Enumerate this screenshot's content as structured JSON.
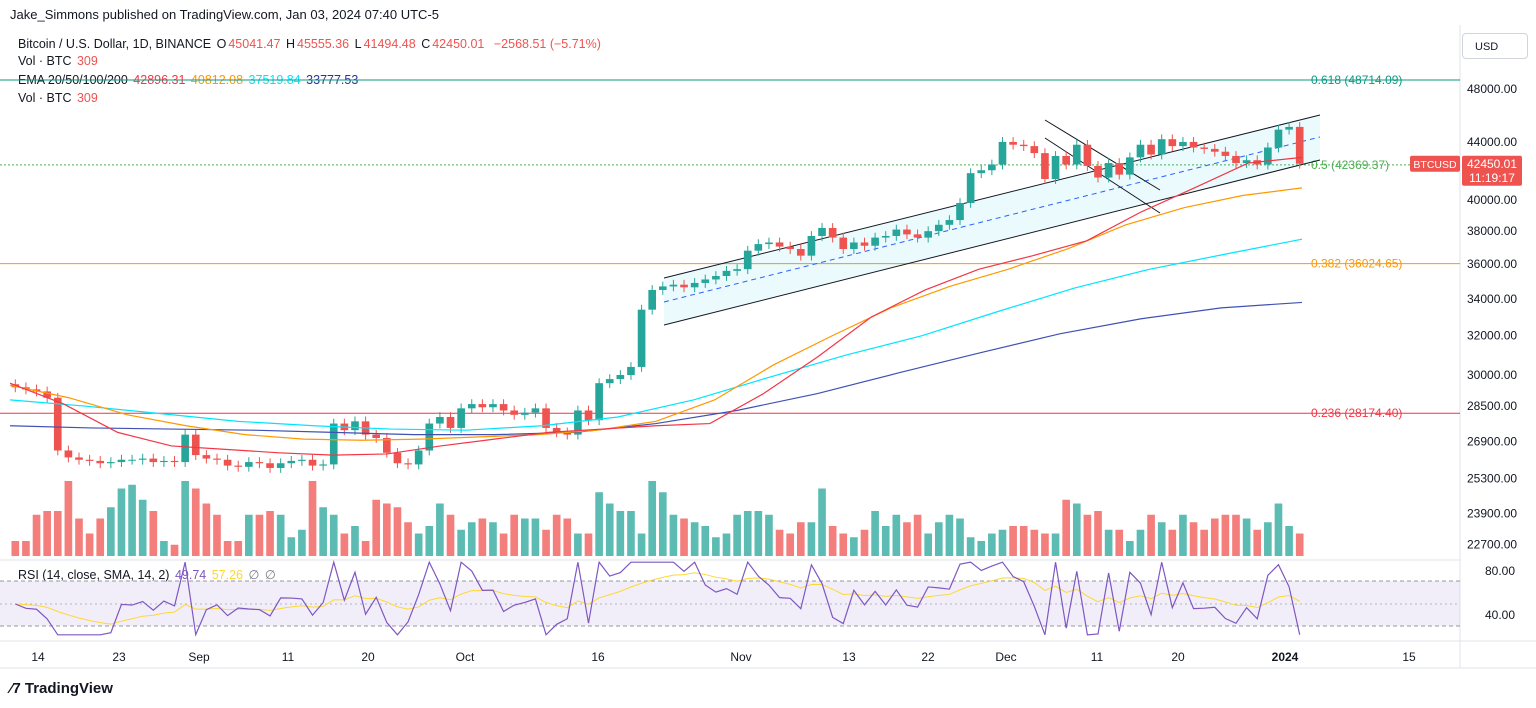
{
  "header": "Jake_Simmons published on TradingView.com, Jan 03, 2024 07:40 UTC-5",
  "legend": {
    "pair": "Bitcoin / U.S. Dollar, 1D, BINANCE",
    "o_label": "O",
    "o": "45041.47",
    "h_label": "H",
    "h": "45555.36",
    "l_label": "L",
    "l": "41494.48",
    "c_label": "C",
    "c": "42450.01",
    "chg": "−2568.51 (−5.71%)",
    "vol1_label": "Vol · BTC",
    "vol1": "309",
    "ema_label": "EMA 20/50/100/200",
    "ema20": "42896.31",
    "ema50": "40812.08",
    "ema100": "37519.84",
    "ema200": "33777.53",
    "vol2_label": "Vol · BTC",
    "vol2": "309",
    "rsi_label": "RSI (14, close, SMA, 14, 2)",
    "rsi": "49.74",
    "rsi_sma": "57.26"
  },
  "currency_button": "USD",
  "price_badge": {
    "symbol": "BTCUSD",
    "price": "42450.01",
    "countdown": "11:19:17"
  },
  "colors": {
    "up": "#26a69a",
    "down": "#ef5350",
    "ema20": "#f23645",
    "ema50": "#ff9800",
    "ema100": "#00e5ff",
    "ema200": "#3f51b5",
    "rsi": "#7e57c2",
    "rsi_sma": "#fdd835",
    "fib0618": "#089981",
    "fib05": "#4caf50",
    "fib0382": "#ff9800",
    "fib0236": "#f23645"
  },
  "footer": "TradingView",
  "chart_data": {
    "type": "candlestick",
    "title": "Bitcoin / U.S. Dollar, 1D, BINANCE",
    "y_axis_ticks": [
      48000,
      44000,
      40000,
      38000,
      36000,
      34000,
      32000,
      30000,
      28500,
      26900,
      25300,
      23900,
      22700
    ],
    "x_axis_ticks": [
      "14",
      "23",
      "Sep",
      "11",
      "20",
      "Oct",
      "16",
      "Nov",
      "13",
      "22",
      "Dec",
      "11",
      "20",
      "2024",
      "15"
    ],
    "fib_levels": [
      {
        "label": "0.618 (48714.09)",
        "value": 48714.09
      },
      {
        "label": "0.5 (42369.37)",
        "value": 42369.37
      },
      {
        "label": "0.382 (36024.65)",
        "value": 36024.65
      },
      {
        "label": "0.236 (28174.40)",
        "value": 28174.4
      }
    ],
    "close_path": [
      29400,
      29300,
      29200,
      28900,
      26500,
      26200,
      26100,
      26050,
      25950,
      26000,
      26100,
      26100,
      26150,
      26000,
      26050,
      26000,
      27200,
      26300,
      26150,
      26100,
      25850,
      25800,
      26000,
      25950,
      25750,
      25950,
      26050,
      26100,
      25850,
      25900,
      27700,
      27400,
      27800,
      27200,
      27050,
      26400,
      25950,
      25900,
      26500,
      27700,
      28000,
      27500,
      28400,
      28600,
      28450,
      28600,
      28300,
      28100,
      28200,
      28400,
      27500,
      27300,
      27200,
      28300,
      27850,
      29600,
      29800,
      30000,
      30400,
      33400,
      34500,
      34700,
      34800,
      34650,
      34900,
      35100,
      35300,
      35600,
      35700,
      36800,
      37200,
      37300,
      37050,
      36900,
      36500,
      37700,
      38200,
      37600,
      36900,
      37300,
      37100,
      37600,
      37700,
      38100,
      37800,
      37600,
      38000,
      38400,
      38700,
      39800,
      41800,
      42000,
      42400,
      44000,
      43800,
      43700,
      43200,
      41400,
      43000,
      42400,
      43800,
      42300,
      41500,
      42500,
      41700,
      42900,
      43800,
      43100,
      44200,
      43700,
      44000,
      43600,
      43500,
      43300,
      43000,
      42500,
      42700,
      42400,
      43600,
      44900,
      45100,
      42450
    ],
    "volume_relative": [
      0.2,
      0.2,
      0.55,
      0.6,
      0.6,
      1.0,
      0.5,
      0.3,
      0.5,
      0.65,
      0.9,
      0.95,
      0.75,
      0.6,
      0.2,
      0.15,
      1.0,
      0.9,
      0.7,
      0.55,
      0.2,
      0.2,
      0.55,
      0.55,
      0.6,
      0.55,
      0.25,
      0.35,
      1.0,
      0.65,
      0.55,
      0.3,
      0.4,
      0.2,
      0.75,
      0.7,
      0.65,
      0.45,
      0.3,
      0.4,
      0.7,
      0.55,
      0.35,
      0.45,
      0.5,
      0.45,
      0.3,
      0.55,
      0.5,
      0.5,
      0.35,
      0.55,
      0.5,
      0.3,
      0.3,
      0.85,
      0.7,
      0.6,
      0.6,
      0.3,
      1.0,
      0.85,
      0.55,
      0.5,
      0.45,
      0.4,
      0.25,
      0.3,
      0.55,
      0.6,
      0.6,
      0.55,
      0.35,
      0.3,
      0.45,
      0.45,
      0.9,
      0.4,
      0.3,
      0.25,
      0.35,
      0.6,
      0.4,
      0.55,
      0.45,
      0.55,
      0.3,
      0.45,
      0.55,
      0.5,
      0.25,
      0.2,
      0.3,
      0.35,
      0.4,
      0.4,
      0.35,
      0.3,
      0.3,
      0.75,
      0.7,
      0.55,
      0.6,
      0.35,
      0.35,
      0.2,
      0.35,
      0.55,
      0.45,
      0.35,
      0.55,
      0.45,
      0.35,
      0.5,
      0.55,
      0.55,
      0.5,
      0.35,
      0.45,
      0.7,
      0.4,
      0.3
    ],
    "ema20_path": [
      29600,
      28600,
      27300,
      26700,
      26550,
      26400,
      26300,
      26350,
      26700,
      27000,
      27300,
      27450,
      27600,
      27700,
      29100,
      30900,
      33000,
      34500,
      35700,
      36500,
      37400,
      39200,
      40800,
      42500,
      42900
    ],
    "ema50_path": [
      29500,
      28900,
      28100,
      27600,
      27200,
      27000,
      26950,
      27000,
      27100,
      27200,
      27400,
      27800,
      28800,
      30500,
      32000,
      33500,
      34700,
      35700,
      36900,
      38400,
      39500,
      40300,
      40800
    ],
    "ema100_path": [
      28800,
      28500,
      28150,
      27800,
      27600,
      27450,
      27400,
      27600,
      28000,
      28800,
      29900,
      31000,
      32000,
      33300,
      34600,
      35700,
      36600,
      37500
    ],
    "ema200_path": [
      27600,
      27500,
      27450,
      27400,
      27300,
      27200,
      27200,
      27300,
      27700,
      28300,
      29100,
      30100,
      31100,
      32100,
      32900,
      33500,
      33800
    ],
    "rsi_axis_ticks": [
      "80.00",
      "40.00"
    ]
  }
}
